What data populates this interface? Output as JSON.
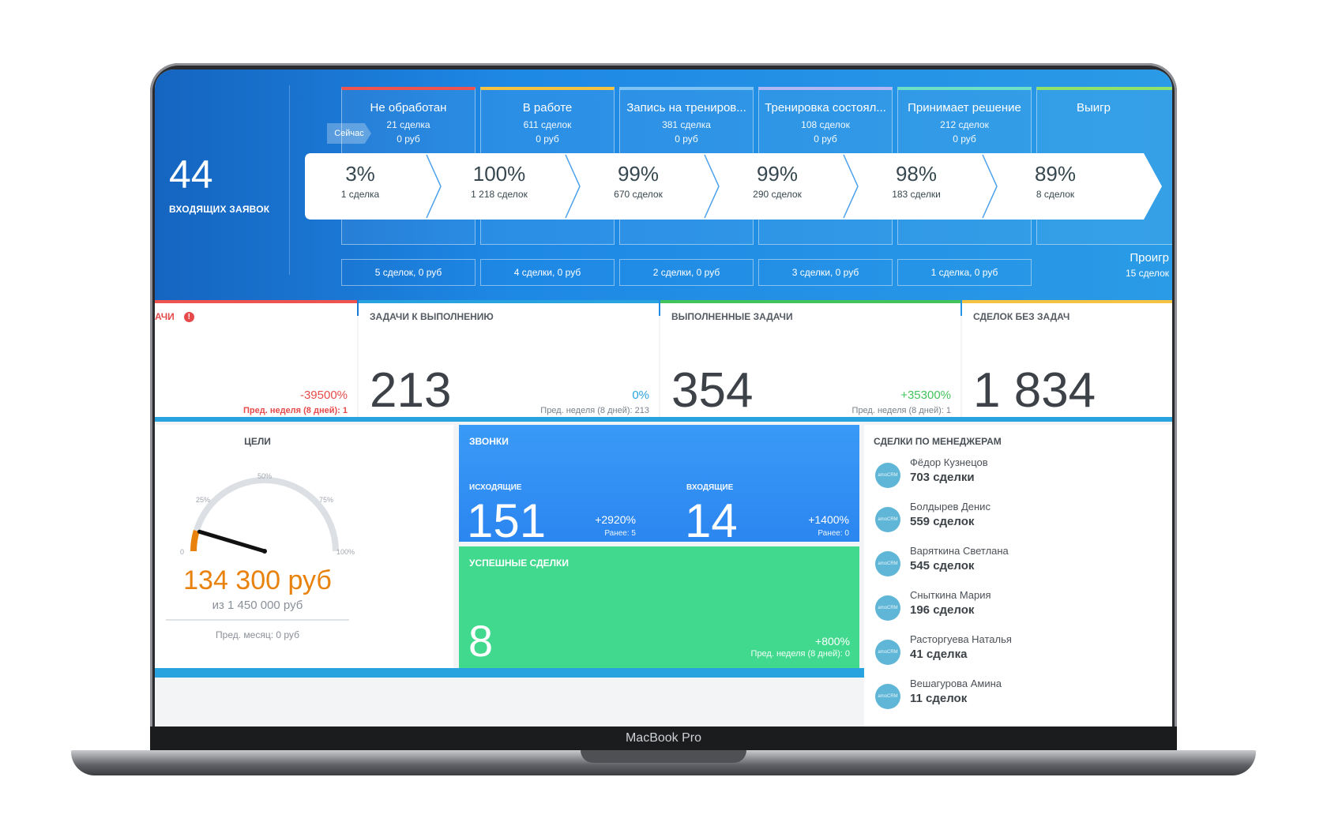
{
  "device": {
    "label": "MacBook Pro"
  },
  "funnel": {
    "incoming_count": "44",
    "incoming_label": "ВХОДЯЩИХ ЗАЯВОК",
    "now_tag": "Сейчас",
    "stages": [
      {
        "name": "Не обработан",
        "deals": "21 сделка",
        "sum": "0 руб",
        "color": "#ef5350",
        "footer": "5 сделок, 0 руб"
      },
      {
        "name": "В работе",
        "deals": "611 сделок",
        "sum": "0 руб",
        "color": "#f5c242",
        "footer": "4 сделки, 0 руб"
      },
      {
        "name": "Запись на трениров...",
        "deals": "381 сделка",
        "sum": "0 руб",
        "color": "#7fc3f5",
        "footer": "2 сделки, 0 руб"
      },
      {
        "name": "Тренировка состоял...",
        "deals": "108 сделок",
        "sum": "0 руб",
        "color": "#b3b8f5",
        "footer": "3 сделки, 0 руб"
      },
      {
        "name": "Принимает решение",
        "deals": "212 сделок",
        "sum": "0 руб",
        "color": "#6ee0c8",
        "footer": "1 сделка, 0 руб"
      },
      {
        "name": "Выигр",
        "deals": "",
        "sum": "",
        "color": "#8fe26a",
        "footer": ""
      }
    ],
    "conversions": [
      {
        "pct": "3%",
        "count": "1 сделка"
      },
      {
        "pct": "100%",
        "count": "1 218 сделок"
      },
      {
        "pct": "99%",
        "count": "670 сделок"
      },
      {
        "pct": "99%",
        "count": "290 сделок"
      },
      {
        "pct": "98%",
        "count": "183 сделки"
      },
      {
        "pct": "89%",
        "count": "8 сделок"
      }
    ],
    "lost": {
      "label": "Проигр",
      "count": "15 сделок"
    }
  },
  "tasks": {
    "overdue": {
      "title": "АЧИ",
      "alert": "!",
      "change": "-39500%",
      "prev": "Пред. неделя (8 дней): 1",
      "color": "#ef5350"
    },
    "todo": {
      "title": "ЗАДАЧИ К ВЫПОЛНЕНИЮ",
      "value": "213",
      "change": "0%",
      "prev": "Пред. неделя (8 дней): 213",
      "color": "#29a3e0"
    },
    "done": {
      "title": "ВЫПОЛНЕННЫЕ ЗАДАЧИ",
      "value": "354",
      "change": "+35300%",
      "prev": "Пред. неделя (8 дней): 1",
      "color": "#43c35b"
    },
    "no_tasks": {
      "title": "СДЕЛОК БЕЗ ЗАДАЧ",
      "value": "1 834",
      "color": "#f5c242"
    }
  },
  "goals": {
    "title": "ЦЕЛИ",
    "ticks": [
      "0",
      "25%",
      "50%",
      "75%",
      "100%"
    ],
    "progress": 0.0926,
    "value": "134 300 руб",
    "of": "из 1 450 000 руб",
    "prev": "Пред. месяц: 0 руб",
    "accent": "#e8820c"
  },
  "calls": {
    "title": "ЗВОНКИ",
    "outgoing": {
      "label": "ИСХОДЯЩИЕ",
      "value": "151",
      "change": "+2920%",
      "was": "Ранее: 5"
    },
    "incoming": {
      "label": "ВХОДЯЩИЕ",
      "value": "14",
      "change": "+1400%",
      "was": "Ранее: 0"
    }
  },
  "success": {
    "title": "УСПЕШНЫЕ СДЕЛКИ",
    "value": "8",
    "change": "+800%",
    "prev": "Пред. неделя (8 дней): 0"
  },
  "managers": {
    "title": "СДЕЛКИ ПО МЕНЕДЖЕРАМ",
    "avatar_text": "amoCRM",
    "items": [
      {
        "name": "Фёдор Кузнецов",
        "deals": "703 сделки"
      },
      {
        "name": "Болдырев Денис",
        "deals": "559 сделок"
      },
      {
        "name": "Варяткина Светлана",
        "deals": "545 сделок"
      },
      {
        "name": "Сныткина Мария",
        "deals": "196 сделок"
      },
      {
        "name": "Расторгуева Наталья",
        "deals": "41 сделка"
      },
      {
        "name": "Вешагурова Амина",
        "deals": "11 сделок"
      }
    ]
  }
}
